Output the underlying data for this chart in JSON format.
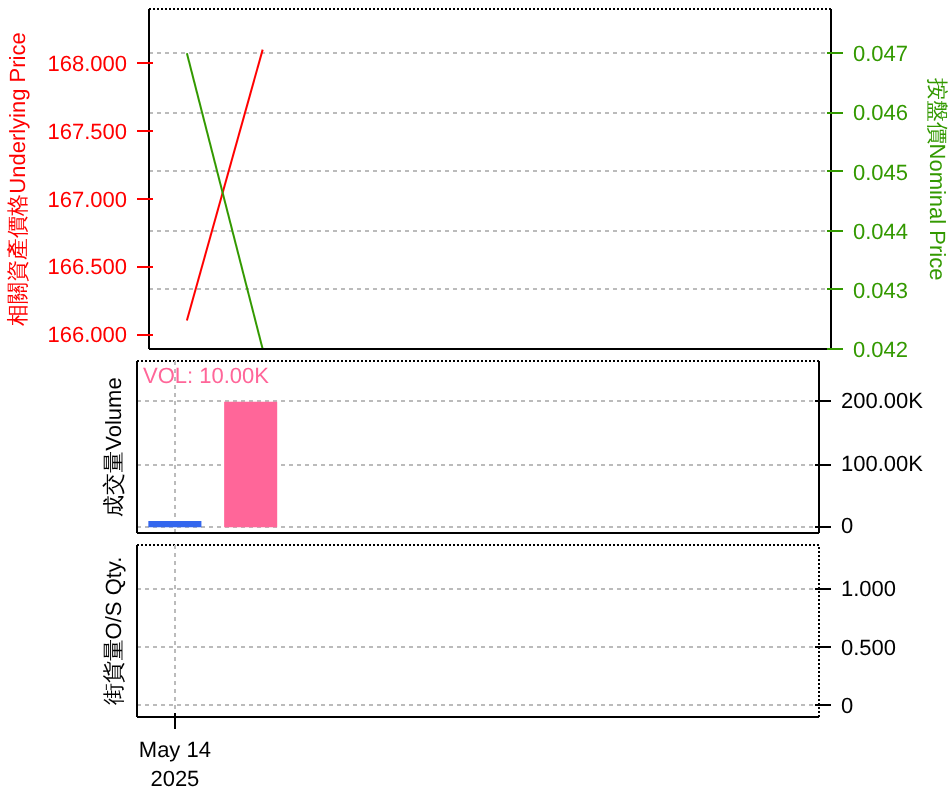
{
  "chart_data": [
    {
      "type": "line",
      "ylabel": "相關資產價格Underlying Price",
      "y2label": "按盤價Nominal Price",
      "categories": [
        null,
        null,
        null,
        null,
        null,
        null,
        null,
        null,
        null
      ],
      "ylim": [
        165.89,
        168.4
      ],
      "yticks": [
        {
          "value": 166,
          "label": "166.000"
        },
        {
          "value": 166.5,
          "label": "166.500"
        },
        {
          "value": 167,
          "label": "167.000"
        },
        {
          "value": 167.5,
          "label": "167.500"
        },
        {
          "value": 168,
          "label": "168.000"
        }
      ],
      "y2lim": [
        0.042,
        0.04775
      ],
      "y2ticks": [
        0.042,
        0.043,
        0.044,
        0.045,
        0.046,
        0.047
      ],
      "grid": "y",
      "series": [
        {
          "color": "#ff0000",
          "values": [
            166.1,
            168.1,
            null,
            null,
            null,
            null,
            null,
            null,
            null
          ]
        },
        {
          "color": "#339900",
          "values": [
            0.047,
            0.042,
            null,
            null,
            null,
            null,
            null,
            null,
            null
          ],
          "axis": "y2"
        }
      ]
    },
    {
      "type": "bar",
      "ylabel": "成交量Volume",
      "categories": [
        null,
        null,
        null,
        null,
        null,
        null,
        null,
        null,
        null
      ],
      "values": [
        10000,
        200000,
        null,
        null,
        null,
        null,
        null,
        null,
        null
      ],
      "colors": [
        "#3366ee",
        "#ff6699",
        "#ff6699",
        "#ff6699",
        "#ff6699",
        "#ff6699",
        "#ff6699",
        "#ff6699",
        "#ff6699"
      ],
      "ylim": [
        -9000,
        265000
      ],
      "yticks": [
        0,
        {
          "value": 100000,
          "label": "100.00K"
        },
        {
          "value": 200000,
          "label": "200.00K"
        }
      ],
      "grid": true,
      "annotations": [
        "VOL: 10.00K"
      ]
    },
    {
      "type": "other",
      "ylabel": "街貨量O/S Qty.",
      "annotations": [
        "May 14\n2025",
        "0",
        "0.500",
        "1.000"
      ]
    }
  ]
}
